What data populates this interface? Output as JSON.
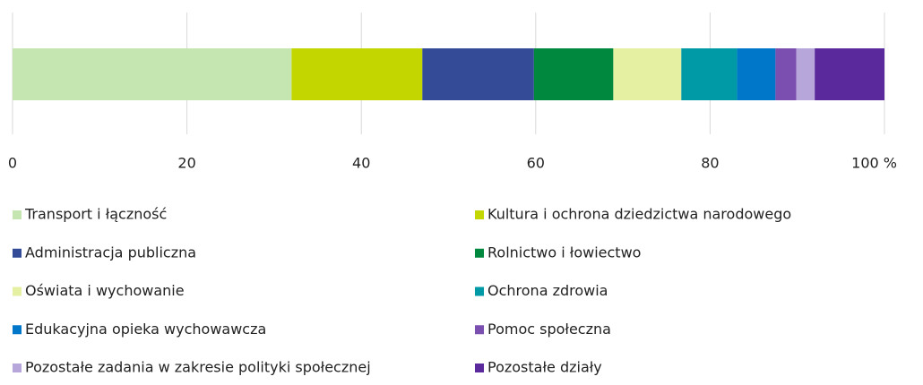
{
  "chart_data": {
    "type": "stacked-bar",
    "orientation": "horizontal",
    "categories": [
      null
    ],
    "series": [
      {
        "name": "Transport i łączność",
        "color": "#c5e6b0",
        "values": [
          32.0
        ]
      },
      {
        "name": "Kultura i ochrona dziedzictwa narodowego",
        "color": "#c3d600",
        "values": [
          15.0
        ]
      },
      {
        "name": "Administracja publiczna",
        "color": "#344b97",
        "values": [
          12.8
        ]
      },
      {
        "name": "Rolnictwo i łowiectwo",
        "color": "#00883f",
        "values": [
          9.1
        ]
      },
      {
        "name": "Oświata i wychowanie",
        "color": "#e6f0a3",
        "values": [
          7.8
        ]
      },
      {
        "name": "Ochrona zdrowia",
        "color": "#009aa6",
        "values": [
          6.4
        ]
      },
      {
        "name": "Edukacyjna opieka wychowawcza",
        "color": "#0077c8",
        "values": [
          4.4
        ]
      },
      {
        "name": "Pomoc społeczna",
        "color": "#7b4fb0",
        "values": [
          2.4
        ]
      },
      {
        "name": "Pozostałe zadania w zakresie polityki społecznej",
        "color": "#b6a6d9",
        "values": [
          2.1
        ]
      },
      {
        "name": "Pozostałe działy",
        "color": "#5a2a9c",
        "values": [
          8.0
        ]
      }
    ],
    "xlim": [
      0,
      100
    ],
    "xticks": [
      0,
      20,
      40,
      60,
      80,
      {
        "value": 100,
        "label": "100 %"
      }
    ],
    "grid": true,
    "legend": "bottom"
  }
}
